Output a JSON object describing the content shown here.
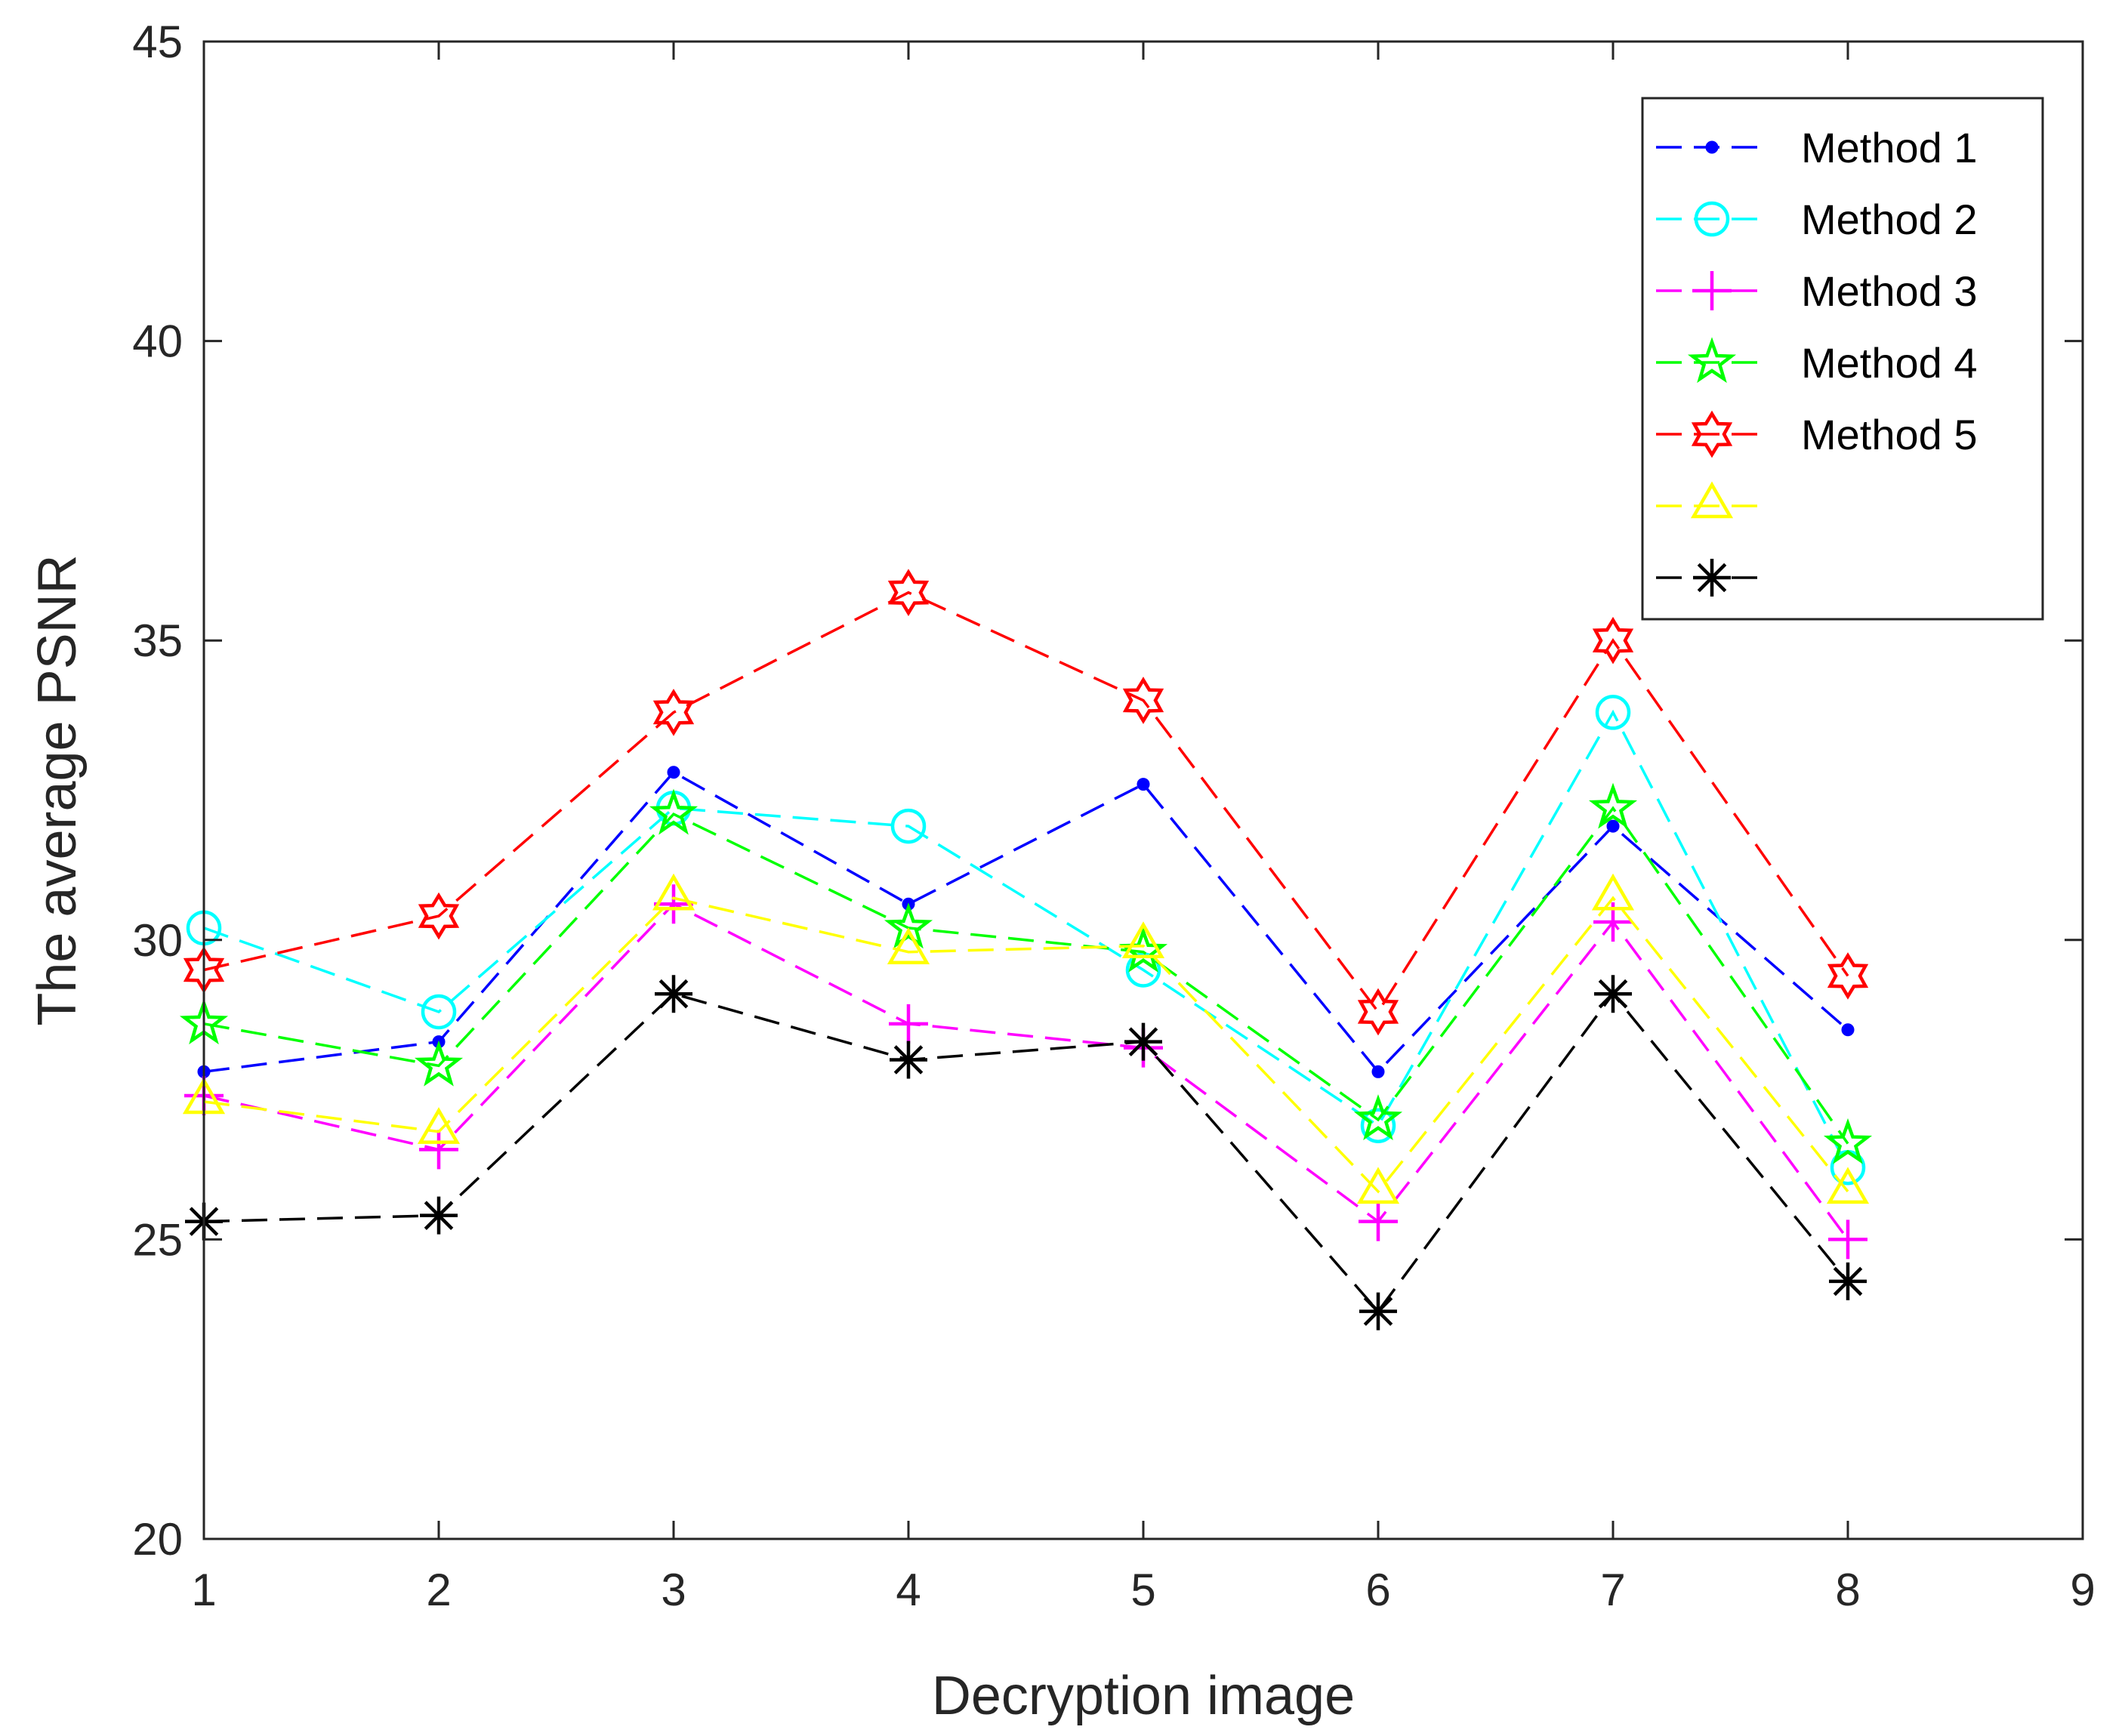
{
  "chart_data": {
    "type": "line",
    "title": "",
    "xlabel": "Decryption image",
    "ylabel": "The average PSNR",
    "xlim": [
      1,
      9
    ],
    "ylim": [
      20,
      45
    ],
    "xticks": [
      1,
      2,
      3,
      4,
      5,
      6,
      7,
      8,
      9
    ],
    "yticks": [
      20,
      25,
      30,
      35,
      40,
      45
    ],
    "grid": false,
    "legend_position": "top-right",
    "x": [
      1,
      2,
      3,
      4,
      5,
      6,
      7,
      8
    ],
    "series": [
      {
        "name": "Method 1",
        "color": "#0000FF",
        "marker": "point",
        "values": [
          27.8,
          28.3,
          32.8,
          30.6,
          32.6,
          27.8,
          31.9,
          28.5
        ]
      },
      {
        "name": "Method 2",
        "color": "#00FFFF",
        "marker": "circle",
        "values": [
          30.2,
          28.8,
          32.2,
          31.9,
          29.5,
          26.9,
          33.8,
          26.2
        ]
      },
      {
        "name": "Method 3",
        "color": "#FF00FF",
        "marker": "plus",
        "values": [
          27.4,
          26.5,
          30.6,
          28.6,
          28.2,
          25.3,
          30.3,
          25.0
        ]
      },
      {
        "name": "Method 4",
        "color": "#00FF00",
        "marker": "pentagram",
        "values": [
          28.6,
          27.9,
          32.1,
          30.2,
          29.8,
          27.0,
          32.2,
          26.6
        ]
      },
      {
        "name": "Method 5",
        "color": "#FF0000",
        "marker": "hexagram",
        "values": [
          29.5,
          30.4,
          33.8,
          35.8,
          34.0,
          28.8,
          35.0,
          29.4
        ]
      },
      {
        "name": "",
        "color": "#FFFF00",
        "marker": "triangle",
        "values": [
          27.3,
          26.8,
          30.7,
          29.8,
          29.9,
          25.8,
          30.7,
          25.8
        ]
      },
      {
        "name": "",
        "color": "#000000",
        "marker": "asterisk",
        "values": [
          25.3,
          25.4,
          29.1,
          28.0,
          28.3,
          23.8,
          29.1,
          24.3
        ]
      }
    ]
  }
}
